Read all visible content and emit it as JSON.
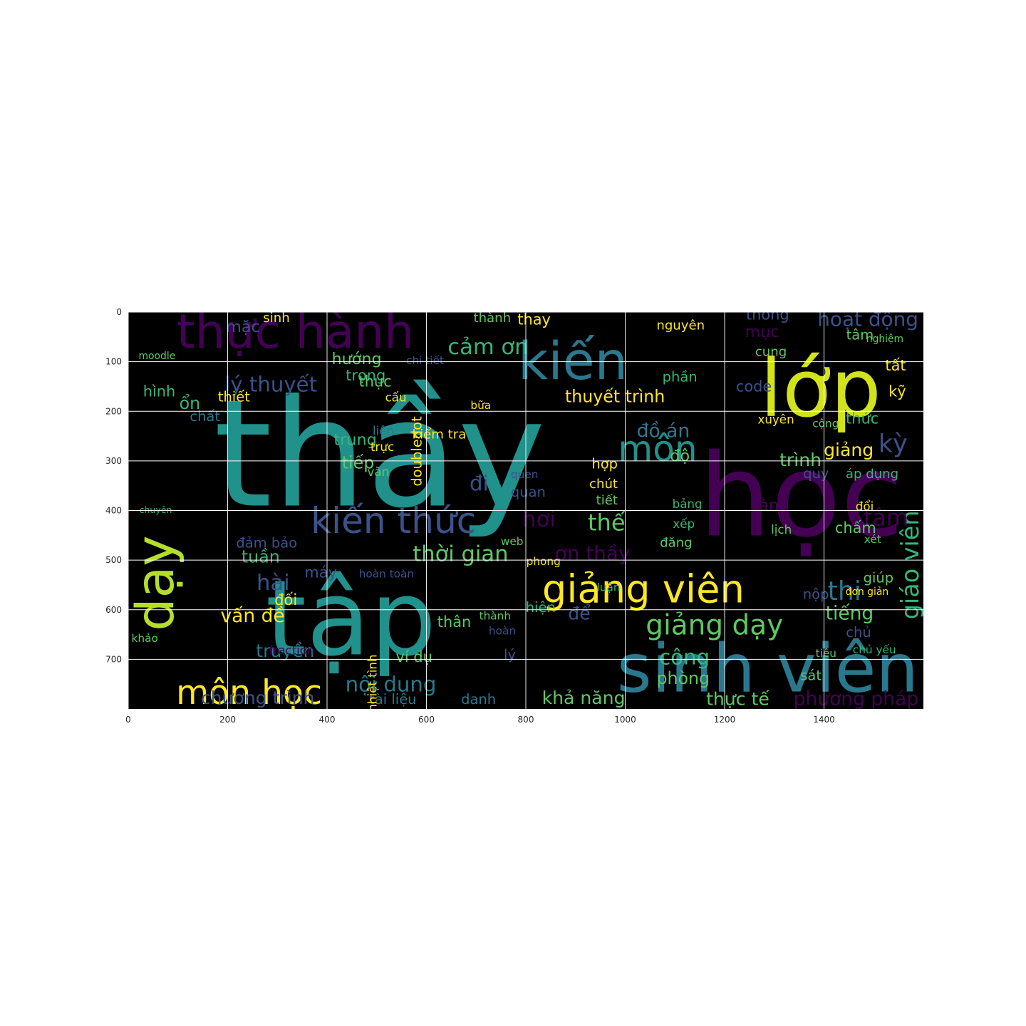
{
  "chart_data": {
    "type": "wordcloud",
    "image_width": 1600,
    "image_height": 800,
    "background": "#000000",
    "grid": true,
    "x_ticks": [
      "0",
      "200",
      "400",
      "600",
      "800",
      "1000",
      "1200",
      "1400"
    ],
    "y_ticks": [
      "0",
      "100",
      "200",
      "300",
      "400",
      "500",
      "600",
      "700"
    ],
    "palette": [
      "#440154",
      "#3b528b",
      "#21918c",
      "#5ec962",
      "#fde725"
    ],
    "words": [
      {
        "text": "thầy",
        "x": 840,
        "y": 390,
        "size": 300,
        "color": "#21918c"
      },
      {
        "text": "học",
        "x": 1560,
        "y": 450,
        "size": 230,
        "color": "#440154"
      },
      {
        "text": "tập",
        "x": 620,
        "y": 690,
        "size": 210,
        "color": "#21918c"
      },
      {
        "text": "lớp",
        "x": 1515,
        "y": 210,
        "size": 160,
        "color": "#d2e21b"
      },
      {
        "text": "sinh viên",
        "x": 1590,
        "y": 765,
        "size": 135,
        "color": "#2a788e"
      },
      {
        "text": "thực hành",
        "x": 575,
        "y": 72,
        "size": 95,
        "color": "#440154"
      },
      {
        "text": "kiến",
        "x": 1005,
        "y": 135,
        "size": 105,
        "color": "#2a788e"
      },
      {
        "text": "dạy",
        "x": 90,
        "y": 450,
        "size": 105,
        "color": "#b5de2b",
        "rotate": -90
      },
      {
        "text": "giảng viên",
        "x": 1240,
        "y": 585,
        "size": 78,
        "color": "#fde725"
      },
      {
        "text": "kiến thức",
        "x": 700,
        "y": 445,
        "size": 72,
        "color": "#3b528b"
      },
      {
        "text": "môn học",
        "x": 390,
        "y": 790,
        "size": 68,
        "color": "#fde725"
      },
      {
        "text": "môn",
        "x": 1145,
        "y": 300,
        "size": 72,
        "color": "#21918c"
      },
      {
        "text": "cảm ơn",
        "x": 805,
        "y": 85,
        "size": 44,
        "color": "#35b779"
      },
      {
        "text": "thời gian",
        "x": 765,
        "y": 502,
        "size": 44,
        "color": "#5ec962"
      },
      {
        "text": "giảng dạy",
        "x": 1318,
        "y": 650,
        "size": 56,
        "color": "#5ec962"
      },
      {
        "text": "giáo viên",
        "x": 1590,
        "y": 400,
        "size": 48,
        "color": "#35b779",
        "rotate": -90
      },
      {
        "text": "lý thuyết",
        "x": 380,
        "y": 160,
        "size": 42,
        "color": "#3b528b"
      },
      {
        "text": "thuyết trình",
        "x": 1080,
        "y": 182,
        "size": 34,
        "color": "#fde725"
      },
      {
        "text": "hoạt động",
        "x": 1590,
        "y": 28,
        "size": 40,
        "color": "#3b528b"
      },
      {
        "text": "thi",
        "x": 1475,
        "y": 580,
        "size": 52,
        "color": "#2a788e"
      },
      {
        "text": "kỳ",
        "x": 1568,
        "y": 282,
        "size": 50,
        "color": "#3b528b"
      },
      {
        "text": "nội dung",
        "x": 620,
        "y": 765,
        "size": 42,
        "color": "#2a788e"
      },
      {
        "text": "chương trình",
        "x": 375,
        "y": 790,
        "size": 36,
        "color": "#3b528b"
      },
      {
        "text": "ơn thầy",
        "x": 1010,
        "y": 500,
        "size": 40,
        "color": "#440154"
      },
      {
        "text": "vấn đề",
        "x": 315,
        "y": 625,
        "size": 38,
        "color": "#fde725"
      },
      {
        "text": "khả năng",
        "x": 1000,
        "y": 790,
        "size": 36,
        "color": "#5ec962"
      },
      {
        "text": "phương pháp",
        "x": 1590,
        "y": 792,
        "size": 38,
        "color": "#440154"
      },
      {
        "text": "thực tế",
        "x": 1290,
        "y": 792,
        "size": 36,
        "color": "#5ec962"
      },
      {
        "text": "hài",
        "x": 325,
        "y": 560,
        "size": 44,
        "color": "#3b528b"
      },
      {
        "text": "truyền",
        "x": 375,
        "y": 695,
        "size": 36,
        "color": "#2a788e"
      },
      {
        "text": "đồ án",
        "x": 1130,
        "y": 252,
        "size": 38,
        "color": "#2a788e"
      },
      {
        "text": "thế",
        "x": 1000,
        "y": 440,
        "size": 46,
        "color": "#5ec962"
      },
      {
        "text": "tâm",
        "x": 1570,
        "y": 430,
        "size": 46,
        "color": "#440154"
      },
      {
        "text": "công",
        "x": 1170,
        "y": 710,
        "size": 42,
        "color": "#35b779"
      },
      {
        "text": "phòng",
        "x": 1170,
        "y": 750,
        "size": 34,
        "color": "#5ec962"
      },
      {
        "text": "tiếng",
        "x": 1500,
        "y": 620,
        "size": 38,
        "color": "#5ec962"
      },
      {
        "text": "trung",
        "x": 500,
        "y": 268,
        "size": 32,
        "color": "#35b779"
      },
      {
        "text": "tiếp",
        "x": 495,
        "y": 315,
        "size": 34,
        "color": "#5ec962"
      },
      {
        "text": "hướng",
        "x": 510,
        "y": 105,
        "size": 32,
        "color": "#5ec962"
      },
      {
        "text": "trọng",
        "x": 518,
        "y": 138,
        "size": 30,
        "color": "#35b779"
      },
      {
        "text": "đi",
        "x": 725,
        "y": 360,
        "size": 42,
        "color": "#3b528b"
      },
      {
        "text": "hơi",
        "x": 860,
        "y": 432,
        "size": 44,
        "color": "#440154"
      },
      {
        "text": "tuần",
        "x": 305,
        "y": 505,
        "size": 34,
        "color": "#35b779"
      },
      {
        "text": "máy",
        "x": 420,
        "y": 535,
        "size": 30,
        "color": "#3b528b"
      },
      {
        "text": "giảng",
        "x": 1500,
        "y": 290,
        "size": 36,
        "color": "#fde725"
      },
      {
        "text": "trình",
        "x": 1395,
        "y": 310,
        "size": 36,
        "color": "#5ec962"
      },
      {
        "text": "độ",
        "x": 1130,
        "y": 300,
        "size": 32,
        "color": "#5ec962"
      },
      {
        "text": "hình",
        "x": 95,
        "y": 170,
        "size": 30,
        "color": "#35b779"
      },
      {
        "text": "ổn",
        "x": 145,
        "y": 195,
        "size": 34,
        "color": "#35b779"
      },
      {
        "text": "thiết",
        "x": 245,
        "y": 180,
        "size": 28,
        "color": "#fde725"
      },
      {
        "text": "chất",
        "x": 185,
        "y": 220,
        "size": 28,
        "color": "#2a788e"
      },
      {
        "text": "mặc",
        "x": 265,
        "y": 40,
        "size": 32,
        "color": "#3b528b"
      },
      {
        "text": "sinh",
        "x": 325,
        "y": 20,
        "size": 26,
        "color": "#fde725"
      },
      {
        "text": "moodle",
        "x": 95,
        "y": 95,
        "size": 20,
        "color": "#5ec962"
      },
      {
        "text": "code",
        "x": 1295,
        "y": 160,
        "size": 30,
        "color": "#3b528b"
      },
      {
        "text": "phần",
        "x": 1145,
        "y": 140,
        "size": 28,
        "color": "#35b779"
      },
      {
        "text": "nguyên",
        "x": 1160,
        "y": 35,
        "size": 26,
        "color": "#fde725"
      },
      {
        "text": "mục",
        "x": 1310,
        "y": 50,
        "size": 32,
        "color": "#440154"
      },
      {
        "text": "thông",
        "x": 1330,
        "y": 15,
        "size": 30,
        "color": "#3b528b"
      },
      {
        "text": "cung",
        "x": 1325,
        "y": 88,
        "size": 26,
        "color": "#5ec962"
      },
      {
        "text": "tâm",
        "x": 1500,
        "y": 55,
        "size": 28,
        "color": "#5ec962"
      },
      {
        "text": "nghiệm",
        "x": 1560,
        "y": 60,
        "size": 20,
        "color": "#5ec962"
      },
      {
        "text": "tất",
        "x": 1565,
        "y": 118,
        "size": 30,
        "color": "#fde725"
      },
      {
        "text": "kỹ",
        "x": 1565,
        "y": 170,
        "size": 30,
        "color": "#fde725"
      },
      {
        "text": "thức",
        "x": 1510,
        "y": 225,
        "size": 30,
        "color": "#35b779"
      },
      {
        "text": "xuyên",
        "x": 1340,
        "y": 225,
        "size": 24,
        "color": "#fde725"
      },
      {
        "text": "cộng",
        "x": 1430,
        "y": 232,
        "size": 22,
        "color": "#5ec962"
      },
      {
        "text": "áp dụng",
        "x": 1550,
        "y": 335,
        "size": 26,
        "color": "#35b779"
      },
      {
        "text": "quy",
        "x": 1410,
        "y": 335,
        "size": 28,
        "color": "#3b528b"
      },
      {
        "text": "làm",
        "x": 1320,
        "y": 400,
        "size": 32,
        "color": "#440154"
      },
      {
        "text": "lịch",
        "x": 1335,
        "y": 447,
        "size": 24,
        "color": "#5ec962"
      },
      {
        "text": "chấm",
        "x": 1505,
        "y": 445,
        "size": 30,
        "color": "#5ec962"
      },
      {
        "text": "xét",
        "x": 1515,
        "y": 465,
        "size": 22,
        "color": "#5ec962"
      },
      {
        "text": "đổi",
        "x": 1500,
        "y": 400,
        "size": 24,
        "color": "#fde725"
      },
      {
        "text": "bảng",
        "x": 1155,
        "y": 395,
        "size": 24,
        "color": "#35b779"
      },
      {
        "text": "xếp",
        "x": 1140,
        "y": 435,
        "size": 24,
        "color": "#35b779"
      },
      {
        "text": "đăng",
        "x": 1135,
        "y": 473,
        "size": 26,
        "color": "#5ec962"
      },
      {
        "text": "chút",
        "x": 985,
        "y": 355,
        "size": 26,
        "color": "#fde725"
      },
      {
        "text": "tiết",
        "x": 985,
        "y": 388,
        "size": 26,
        "color": "#5ec962"
      },
      {
        "text": "hợp",
        "x": 985,
        "y": 315,
        "size": 28,
        "color": "#fde725"
      },
      {
        "text": "thay",
        "x": 850,
        "y": 25,
        "size": 30,
        "color": "#fde725"
      },
      {
        "text": "thành",
        "x": 770,
        "y": 20,
        "size": 26,
        "color": "#5ec962"
      },
      {
        "text": "chi tiết",
        "x": 635,
        "y": 105,
        "size": 22,
        "color": "#3b528b"
      },
      {
        "text": "kiểm tra",
        "x": 680,
        "y": 255,
        "size": 26,
        "color": "#fde725"
      },
      {
        "text": "bữa",
        "x": 730,
        "y": 195,
        "size": 22,
        "color": "#fde725"
      },
      {
        "text": "liên",
        "x": 535,
        "y": 248,
        "size": 24,
        "color": "#2a788e"
      },
      {
        "text": "trực",
        "x": 535,
        "y": 280,
        "size": 24,
        "color": "#fde725"
      },
      {
        "text": "văn",
        "x": 525,
        "y": 330,
        "size": 24,
        "color": "#5ec962"
      },
      {
        "text": "thực",
        "x": 530,
        "y": 150,
        "size": 30,
        "color": "#5ec962"
      },
      {
        "text": "cấu",
        "x": 560,
        "y": 180,
        "size": 24,
        "color": "#fde725"
      },
      {
        "text": "hoàn toàn",
        "x": 575,
        "y": 535,
        "size": 22,
        "color": "#3b528b"
      },
      {
        "text": "đối",
        "x": 340,
        "y": 590,
        "size": 30,
        "color": "#fde725"
      },
      {
        "text": "đảm bảo",
        "x": 340,
        "y": 475,
        "size": 28,
        "color": "#3b528b"
      },
      {
        "text": "quan",
        "x": 840,
        "y": 372,
        "size": 28,
        "color": "#3b528b"
      },
      {
        "text": "quen",
        "x": 825,
        "y": 335,
        "size": 22,
        "color": "#3b528b"
      },
      {
        "text": "web",
        "x": 795,
        "y": 470,
        "size": 22,
        "color": "#5ec962"
      },
      {
        "text": "phong",
        "x": 870,
        "y": 510,
        "size": 22,
        "color": "#fde725"
      },
      {
        "text": "luận",
        "x": 990,
        "y": 562,
        "size": 22,
        "color": "#35b779"
      },
      {
        "text": "nộp",
        "x": 1410,
        "y": 578,
        "size": 28,
        "color": "#3b528b"
      },
      {
        "text": "giúp",
        "x": 1540,
        "y": 545,
        "size": 28,
        "color": "#5ec962"
      },
      {
        "text": "đơn giản",
        "x": 1530,
        "y": 570,
        "size": 20,
        "color": "#fde725"
      },
      {
        "text": "chủ",
        "x": 1495,
        "y": 655,
        "size": 28,
        "color": "#3b528b"
      },
      {
        "text": "chủ yếu",
        "x": 1545,
        "y": 688,
        "size": 22,
        "color": "#35b779"
      },
      {
        "text": "tiêu",
        "x": 1425,
        "y": 695,
        "size": 22,
        "color": "#5ec962"
      },
      {
        "text": "sát",
        "x": 1395,
        "y": 742,
        "size": 28,
        "color": "#5ec962"
      },
      {
        "text": "hiện",
        "x": 860,
        "y": 605,
        "size": 28,
        "color": "#35b779"
      },
      {
        "text": "để",
        "x": 930,
        "y": 620,
        "size": 36,
        "color": "#3b528b"
      },
      {
        "text": "thân",
        "x": 690,
        "y": 635,
        "size": 30,
        "color": "#5ec962"
      },
      {
        "text": "thành",
        "x": 770,
        "y": 620,
        "size": 22,
        "color": "#5ec962"
      },
      {
        "text": "hoàn",
        "x": 780,
        "y": 650,
        "size": 22,
        "color": "#3b528b"
      },
      {
        "text": "ví dụ",
        "x": 612,
        "y": 705,
        "size": 30,
        "color": "#5ec962"
      },
      {
        "text": "lý",
        "x": 780,
        "y": 700,
        "size": 28,
        "color": "#3b528b"
      },
      {
        "text": "danh",
        "x": 740,
        "y": 790,
        "size": 28,
        "color": "#2a788e"
      },
      {
        "text": "tài liệu",
        "x": 580,
        "y": 790,
        "size": 28,
        "color": "#2a788e"
      },
      {
        "text": "fraction",
        "x": 375,
        "y": 690,
        "size": 24,
        "color": "#440154"
      },
      {
        "text": "khảo",
        "x": 60,
        "y": 665,
        "size": 22,
        "color": "#5ec962"
      },
      {
        "text": "chuyên",
        "x": 88,
        "y": 405,
        "size": 18,
        "color": "#35b779"
      },
      {
        "text": "doubledot",
        "x": 590,
        "y": 210,
        "size": 28,
        "color": "#fde725",
        "rotate": -90
      },
      {
        "text": "nhiệt tình",
        "x": 500,
        "y": 690,
        "size": 24,
        "color": "#fde725",
        "rotate": -90
      }
    ]
  }
}
